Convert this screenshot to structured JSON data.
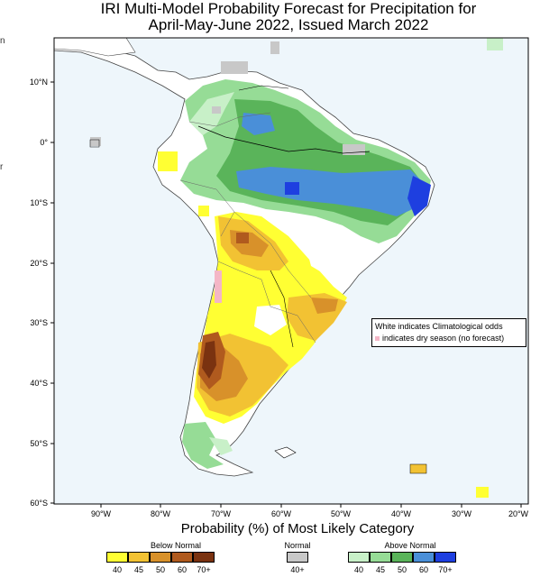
{
  "title": {
    "line1": "IRI Multi-Model Probability Forecast for Precipitation for",
    "line2": "April-May-June 2022, Issued March 2022"
  },
  "map": {
    "lat_labels": [
      "10°N",
      "0°",
      "10°S",
      "20°S",
      "30°S",
      "40°S",
      "50°S",
      "60°S"
    ],
    "lon_labels": [
      "90°W",
      "80°W",
      "70°W",
      "60°W",
      "50°W",
      "40°W",
      "30°W",
      "20°W"
    ],
    "ocean_color": "#eef6fb",
    "land_white": "#ffffff"
  },
  "note": {
    "line1": "White indicates Climatological odds",
    "line2": "indicates dry season (no forecast)"
  },
  "legend": {
    "title": "Probability (%) of Most Likely Category",
    "below_label": "Below Normal",
    "normal_label": "Normal",
    "above_label": "Above Normal",
    "below_values": [
      "40",
      "45",
      "50",
      "60",
      "70+"
    ],
    "below_colors": [
      "#ffff33",
      "#f2c233",
      "#d8912a",
      "#b05a1e",
      "#7a3210"
    ],
    "normal_values": [
      "40+"
    ],
    "normal_colors": [
      "#c8c8c8"
    ],
    "above_values": [
      "40",
      "45",
      "50",
      "60",
      "70+"
    ],
    "above_colors": [
      "#c8f0c8",
      "#96dc96",
      "#5ab45a",
      "#4a8fd8",
      "#1e3fe0"
    ]
  },
  "side": {
    "letter_n": "n",
    "letter_r": "r"
  }
}
